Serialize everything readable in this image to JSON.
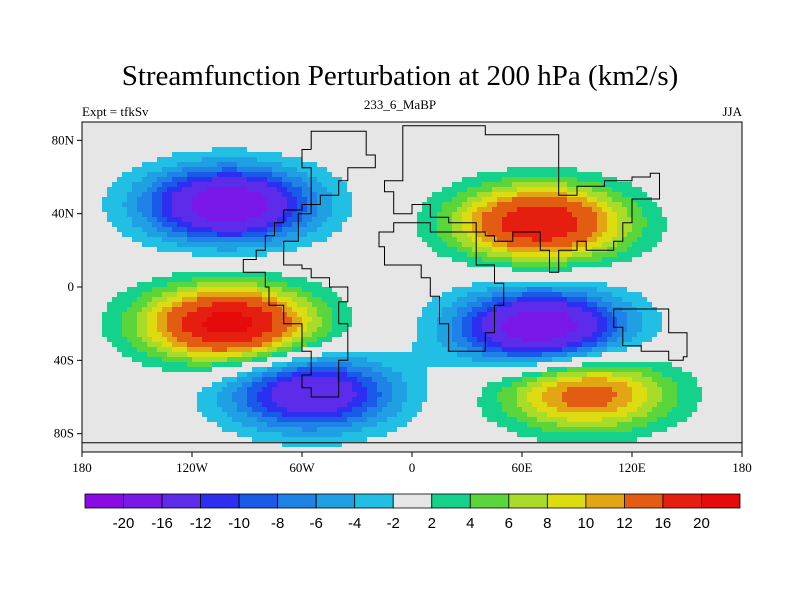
{
  "chart_data": {
    "type": "heatmap",
    "title": "Streamfunction Perturbation at 200 hPa (km2/s)",
    "left_label": "Expt = tfkSv",
    "center_label": "233_6_MaBP",
    "right_label": "JJA",
    "x_ticks": [
      "180",
      "120W",
      "60W",
      "0",
      "60E",
      "120E",
      "180"
    ],
    "y_ticks": [
      "80N",
      "40N",
      "0",
      "40S",
      "80S"
    ],
    "xlim": [
      -180,
      180
    ],
    "ylim": [
      -90,
      90
    ],
    "colorbar": {
      "labels": [
        "-20",
        "-16",
        "-12",
        "-10",
        "-8",
        "-6",
        "-4",
        "-2",
        "2",
        "4",
        "6",
        "8",
        "10",
        "12",
        "16",
        "20"
      ],
      "levels": [
        -20,
        -16,
        -12,
        -10,
        -8,
        -6,
        -4,
        -2,
        2,
        4,
        6,
        8,
        10,
        12,
        16,
        20
      ],
      "colors": [
        "#8a0ae6",
        "#7a18ea",
        "#5d2cea",
        "#2c2ff0",
        "#1a5ae8",
        "#1e82e6",
        "#1ea0e2",
        "#22bfe4",
        "#e6e6e6",
        "#14d28c",
        "#5ad63c",
        "#a8dc28",
        "#dcdc10",
        "#e2a614",
        "#e25c12",
        "#e61e10",
        "#e60a0a"
      ]
    },
    "features": [
      {
        "name": "nh-west-low",
        "lon": -100,
        "lat": 45,
        "peak": -20
      },
      {
        "name": "sh-west-high",
        "lon": -100,
        "lat": -20,
        "peak": 22
      },
      {
        "name": "nh-east-high",
        "lon": 70,
        "lat": 35,
        "peak": 20
      },
      {
        "name": "sh-east-low",
        "lon": 70,
        "lat": -22,
        "peak": -20
      },
      {
        "name": "sh-south-low",
        "lon": -55,
        "lat": -58,
        "peak": -16
      },
      {
        "name": "sh-south-high",
        "lon": 95,
        "lat": -58,
        "peak": 14
      }
    ]
  }
}
